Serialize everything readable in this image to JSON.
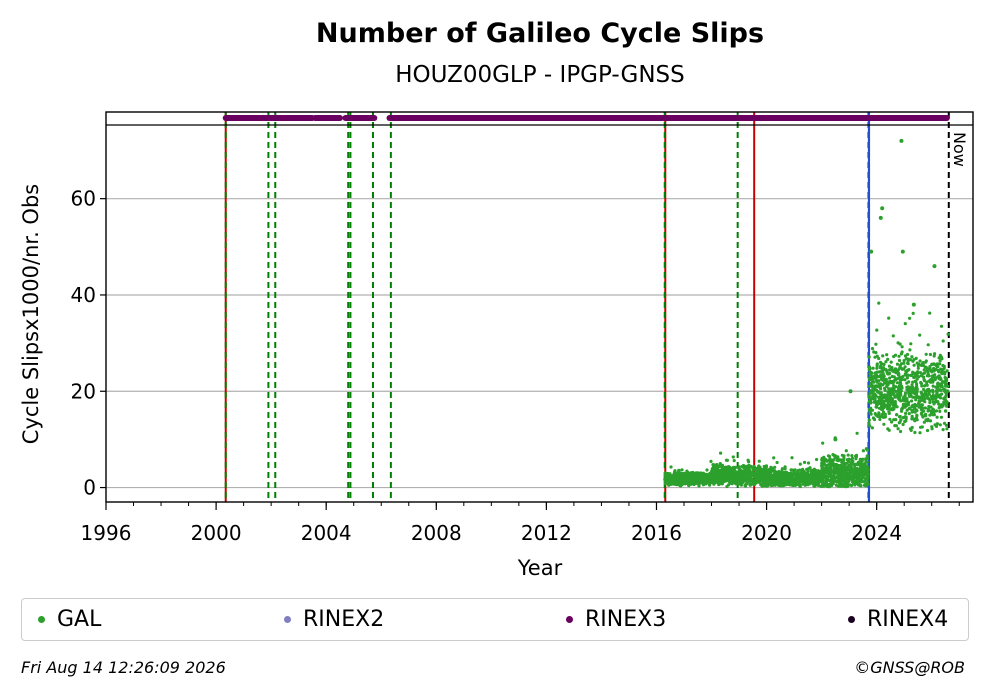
{
  "chart_data": {
    "type": "scatter",
    "title": "Number of Galileo Cycle Slips",
    "subtitle": "HOUZ00GLP - IPGP-GNSS",
    "xlabel": "Year",
    "ylabel": "Cycle Slipsx1000/nr. Obs",
    "xlim": [
      1996,
      2027.5
    ],
    "ylim": [
      -3,
      78
    ],
    "x_ticks": [
      "1996",
      "2000",
      "2004",
      "2008",
      "2012",
      "2016",
      "2020",
      "2024"
    ],
    "y_ticks": [
      "0",
      "20",
      "40",
      "60"
    ],
    "grid": "horizontal",
    "now_label": "Now",
    "now_date": 2026.62,
    "vlines": {
      "green_dashed": [
        2000.35,
        2001.9,
        2002.15,
        2004.8,
        2004.88,
        2005.7,
        2006.35,
        2016.3,
        2018.95,
        2023.7
      ],
      "red_solid": [
        2000.35,
        2016.32,
        2019.55
      ],
      "blue_solid": [
        2023.72
      ]
    },
    "rinex3_segments": [
      [
        2000.35,
        2003.5
      ],
      [
        2003.6,
        2004.5
      ],
      [
        2004.7,
        2005.75
      ],
      [
        2006.3,
        2026.55
      ]
    ],
    "series": [
      {
        "name": "GAL",
        "color": "#2ca02c",
        "segments": [
          {
            "x_start": 2016.3,
            "x_end": 2018.0,
            "baseline": 1.8,
            "spread": 1.5
          },
          {
            "x_start": 2018.0,
            "x_end": 2020.0,
            "baseline": 2.5,
            "spread": 2.5
          },
          {
            "x_start": 2020.0,
            "x_end": 2022.0,
            "baseline": 2.0,
            "spread": 2.0
          },
          {
            "x_start": 2022.0,
            "x_end": 2023.7,
            "baseline": 3.0,
            "spread": 4.0
          },
          {
            "x_start": 2023.72,
            "x_end": 2026.6,
            "baseline": 20.0,
            "spread": 9.0
          }
        ],
        "outliers": [
          [
            2024.2,
            58
          ],
          [
            2024.15,
            56
          ],
          [
            2024.9,
            72
          ],
          [
            2024.95,
            49
          ],
          [
            2025.35,
            38
          ],
          [
            2026.1,
            46
          ],
          [
            2023.8,
            49
          ],
          [
            2023.05,
            20
          ],
          [
            2022.5,
            10
          ]
        ]
      },
      {
        "name": "RINEX2",
        "color": "#8080c0"
      },
      {
        "name": "RINEX3",
        "color": "#6a0060"
      },
      {
        "name": "RINEX4",
        "color": "#1a0020"
      }
    ]
  },
  "footer": {
    "timestamp": "Fri Aug 14 12:26:09 2026",
    "copyright": "©GNSS@ROB"
  }
}
